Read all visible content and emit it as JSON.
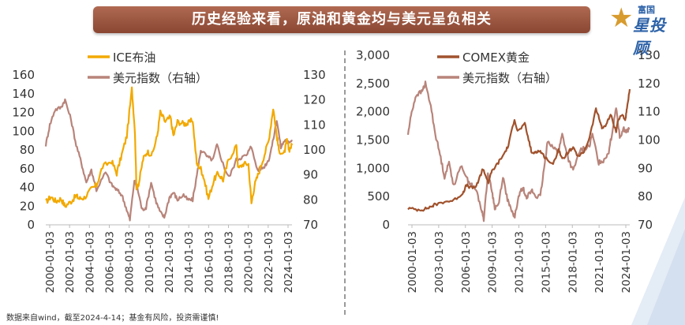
{
  "header": {
    "title": "历史经验来看，原油和黄金均与美元呈负相关"
  },
  "logo": {
    "top": "富国",
    "name": "星投顾"
  },
  "footer": {
    "disclaimer": "数据来自wind，截至2024-4-14；基金有风险，投资需谨慎!"
  },
  "colors": {
    "oil": "#f2a900",
    "gold": "#a0522d",
    "usd": "#b8847a",
    "banner": "#9c5540",
    "logo": "#2d62a8"
  },
  "chart_data": [
    {
      "type": "line",
      "legend": [
        "ICE布油",
        "美元指数（右轴）"
      ],
      "y_left": {
        "min": 0,
        "max": 160,
        "ticks": [
          "0",
          "20",
          "40",
          "60",
          "80",
          "100",
          "120",
          "140",
          "160"
        ]
      },
      "y_right": {
        "min": 70,
        "max": 130,
        "ticks": [
          "70",
          "80",
          "90",
          "100",
          "110",
          "120",
          "130"
        ]
      },
      "x_ticks": [
        "2000-01-03",
        "2002-01-03",
        "2004-01-03",
        "2006-01-03",
        "2008-01-03",
        "2010-01-03",
        "2012-01-03",
        "2014-01-03",
        "2016-01-03",
        "2018-01-03",
        "2020-01-03",
        "2022-01-03",
        "2024-01-03"
      ],
      "x_range": [
        2000.0,
        2024.3
      ],
      "series": [
        {
          "name": "ICE布油",
          "axis": "left",
          "x": [
            2000.0,
            2000.5,
            2001.0,
            2001.5,
            2001.9,
            2002.5,
            2003.0,
            2003.3,
            2003.8,
            2004.5,
            2005.0,
            2005.6,
            2006.5,
            2007.0,
            2007.5,
            2008.0,
            2008.5,
            2008.8,
            2008.95,
            2009.2,
            2009.6,
            2010.0,
            2010.5,
            2011.0,
            2011.3,
            2011.8,
            2012.3,
            2012.6,
            2013.0,
            2013.6,
            2014.0,
            2014.5,
            2014.9,
            2015.3,
            2015.6,
            2016.05,
            2016.6,
            2017.0,
            2017.5,
            2018.0,
            2018.8,
            2019.0,
            2019.5,
            2020.0,
            2020.3,
            2020.6,
            2021.0,
            2021.5,
            2022.0,
            2022.45,
            2022.8,
            2023.0,
            2023.5,
            2023.8,
            2024.0,
            2024.3
          ],
          "values": [
            24,
            30,
            25,
            28,
            20,
            25,
            31,
            28,
            29,
            38,
            42,
            62,
            68,
            55,
            75,
            95,
            145,
            100,
            40,
            45,
            70,
            78,
            75,
            95,
            120,
            110,
            115,
            95,
            110,
            108,
            108,
            112,
            65,
            60,
            50,
            28,
            48,
            55,
            48,
            68,
            85,
            60,
            65,
            65,
            23,
            42,
            55,
            72,
            90,
            125,
            95,
            80,
            75,
            90,
            80,
            85
          ]
        },
        {
          "name": "美元指数（右轴）",
          "axis": "right",
          "x": [
            2000.0,
            2000.4,
            2000.9,
            2001.5,
            2001.9,
            2002.5,
            2003.0,
            2003.5,
            2004.0,
            2004.5,
            2005.0,
            2005.9,
            2006.5,
            2007.0,
            2007.5,
            2008.0,
            2008.3,
            2008.75,
            2009.2,
            2009.5,
            2009.9,
            2010.4,
            2010.9,
            2011.3,
            2011.7,
            2012.2,
            2012.6,
            2013.0,
            2013.6,
            2014.0,
            2014.5,
            2015.0,
            2015.3,
            2016.0,
            2016.5,
            2016.9,
            2017.6,
            2018.1,
            2018.8,
            2019.3,
            2019.9,
            2020.2,
            2020.9,
            2021.5,
            2022.0,
            2022.4,
            2022.8,
            2023.2,
            2023.6,
            2023.9,
            2024.3
          ],
          "values": [
            102,
            110,
            116,
            117,
            120,
            112,
            102,
            95,
            87,
            92,
            84,
            91,
            86,
            84,
            82,
            76,
            72,
            88,
            82,
            76,
            77,
            87,
            79,
            75,
            73,
            81,
            83,
            80,
            82,
            80,
            80,
            92,
            100,
            97,
            96,
            102,
            93,
            89,
            96,
            97,
            98,
            102,
            92,
            93,
            96,
            103,
            112,
            101,
            104,
            103,
            104
          ]
        }
      ]
    },
    {
      "type": "line",
      "legend": [
        "COMEX黄金",
        "美元指数（右轴）"
      ],
      "y_left": {
        "min": 0,
        "max": 3000,
        "ticks": [
          "0",
          "500",
          "1,000",
          "1,500",
          "2,000",
          "2,500",
          "3,000"
        ]
      },
      "y_right": {
        "min": 70,
        "max": 130,
        "ticks": [
          "70",
          "80",
          "90",
          "100",
          "110",
          "120",
          "130"
        ]
      },
      "x_ticks": [
        "2000-01-03",
        "2003-01-03",
        "2006-01-03",
        "2009-01-03",
        "2012-01-03",
        "2015-01-03",
        "2018-01-03",
        "2021-01-03",
        "2024-01-03"
      ],
      "x_range": [
        2000.0,
        2024.3
      ],
      "series": [
        {
          "name": "COMEX黄金",
          "axis": "left",
          "x": [
            2000.0,
            2001.0,
            2001.8,
            2002.5,
            2003.0,
            2004.0,
            2005.0,
            2006.0,
            2006.4,
            2007.0,
            2007.5,
            2008.0,
            2008.2,
            2008.8,
            2009.2,
            2009.9,
            2010.5,
            2011.0,
            2011.67,
            2012.0,
            2012.8,
            2013.3,
            2013.6,
            2014.0,
            2014.5,
            2015.0,
            2015.9,
            2016.5,
            2016.9,
            2017.6,
            2018.1,
            2018.7,
            2019.3,
            2019.9,
            2020.6,
            2021.0,
            2021.3,
            2021.8,
            2022.2,
            2022.8,
            2023.0,
            2023.5,
            2023.8,
            2024.0,
            2024.3
          ],
          "values": [
            290,
            270,
            275,
            320,
            360,
            410,
            430,
            560,
            700,
            650,
            680,
            900,
            1000,
            750,
            950,
            1100,
            1250,
            1400,
            1880,
            1650,
            1780,
            1450,
            1250,
            1300,
            1300,
            1200,
            1060,
            1350,
            1150,
            1300,
            1350,
            1200,
            1300,
            1550,
            2050,
            1850,
            1700,
            1800,
            1950,
            1650,
            1850,
            1950,
            1850,
            2050,
            2400
          ]
        },
        {
          "name": "美元指数（右轴）",
          "axis": "right",
          "x": [
            2000.0,
            2000.4,
            2000.9,
            2001.5,
            2001.9,
            2002.5,
            2003.0,
            2003.5,
            2004.0,
            2004.5,
            2005.0,
            2005.9,
            2006.5,
            2007.0,
            2007.5,
            2008.0,
            2008.3,
            2008.75,
            2009.2,
            2009.5,
            2009.9,
            2010.4,
            2010.9,
            2011.3,
            2011.7,
            2012.2,
            2012.6,
            2013.0,
            2013.6,
            2014.0,
            2014.5,
            2015.0,
            2015.3,
            2016.0,
            2016.5,
            2016.9,
            2017.6,
            2018.1,
            2018.8,
            2019.3,
            2019.9,
            2020.2,
            2020.9,
            2021.5,
            2022.0,
            2022.4,
            2022.8,
            2023.2,
            2023.6,
            2023.9,
            2024.3
          ],
          "values": [
            102,
            110,
            116,
            117,
            120,
            112,
            102,
            95,
            87,
            92,
            84,
            91,
            86,
            84,
            82,
            76,
            72,
            88,
            82,
            76,
            77,
            87,
            79,
            75,
            73,
            81,
            83,
            80,
            82,
            80,
            80,
            92,
            100,
            97,
            96,
            102,
            93,
            89,
            96,
            97,
            98,
            102,
            92,
            93,
            96,
            103,
            112,
            101,
            104,
            103,
            104
          ]
        }
      ]
    }
  ]
}
